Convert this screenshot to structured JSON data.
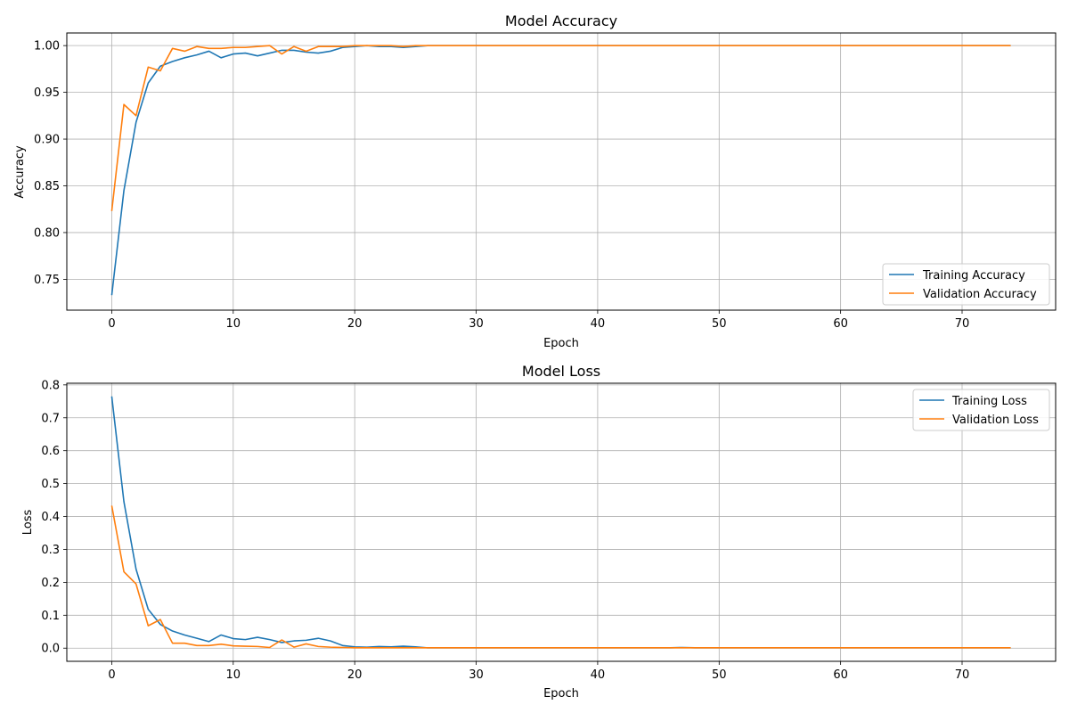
{
  "chart_data": [
    {
      "type": "line",
      "title": "Model Accuracy",
      "xlabel": "Epoch",
      "ylabel": "Accuracy",
      "xlim": [
        -3.7,
        77.7
      ],
      "ylim": [
        0.717,
        1.0135
      ],
      "xticks": [
        0,
        10,
        20,
        30,
        40,
        50,
        60,
        70
      ],
      "yticks": [
        0.75,
        0.8,
        0.85,
        0.9,
        0.95,
        1.0
      ],
      "ytick_decimals": 2,
      "grid": true,
      "legend_position": "lower-right",
      "series": [
        {
          "name": "Training Accuracy",
          "color": "#1f77b4",
          "values": [
            0.733,
            0.845,
            0.918,
            0.96,
            0.978,
            0.983,
            0.987,
            0.99,
            0.994,
            0.987,
            0.991,
            0.992,
            0.989,
            0.992,
            0.995,
            0.995,
            0.993,
            0.992,
            0.994,
            0.998,
            0.999,
            1.0,
            0.999,
            0.999,
            0.998,
            0.999,
            1.0,
            1.0,
            1.0,
            1.0,
            1.0,
            1.0,
            1.0,
            1.0,
            1.0,
            1.0,
            1.0,
            1.0,
            1.0,
            1.0,
            1.0,
            1.0,
            1.0,
            1.0,
            1.0,
            1.0,
            1.0,
            1.0,
            1.0,
            1.0,
            1.0,
            1.0,
            1.0,
            1.0,
            1.0,
            1.0,
            1.0,
            1.0,
            1.0,
            1.0,
            1.0,
            1.0,
            1.0,
            1.0,
            1.0,
            1.0,
            1.0,
            1.0,
            1.0,
            1.0,
            1.0,
            1.0,
            1.0,
            1.0,
            1.0
          ]
        },
        {
          "name": "Validation Accuracy",
          "color": "#ff7f0e",
          "values": [
            0.823,
            0.937,
            0.925,
            0.977,
            0.973,
            0.997,
            0.994,
            0.999,
            0.997,
            0.997,
            0.998,
            0.998,
            0.999,
            1.0,
            0.991,
            0.999,
            0.994,
            0.999,
            0.999,
            0.999,
            1.0,
            1.0,
            1.0,
            1.0,
            0.999,
            1.0,
            1.0,
            1.0,
            1.0,
            1.0,
            1.0,
            1.0,
            1.0,
            1.0,
            1.0,
            1.0,
            1.0,
            1.0,
            1.0,
            1.0,
            1.0,
            1.0,
            1.0,
            1.0,
            1.0,
            1.0,
            1.0,
            1.0,
            1.0,
            1.0,
            1.0,
            1.0,
            1.0,
            1.0,
            1.0,
            1.0,
            1.0,
            1.0,
            1.0,
            1.0,
            1.0,
            1.0,
            1.0,
            1.0,
            1.0,
            1.0,
            1.0,
            1.0,
            1.0,
            1.0,
            1.0,
            1.0,
            1.0,
            1.0,
            1.0
          ]
        }
      ]
    },
    {
      "type": "line",
      "title": "Model Loss",
      "xlabel": "Epoch",
      "ylabel": "Loss",
      "xlim": [
        -3.7,
        77.7
      ],
      "ylim": [
        -0.04,
        0.805
      ],
      "xticks": [
        0,
        10,
        20,
        30,
        40,
        50,
        60,
        70
      ],
      "yticks": [
        0.0,
        0.1,
        0.2,
        0.3,
        0.4,
        0.5,
        0.6,
        0.7,
        0.8
      ],
      "ytick_decimals": 1,
      "grid": true,
      "legend_position": "upper-right",
      "series": [
        {
          "name": "Training Loss",
          "color": "#1f77b4",
          "values": [
            0.765,
            0.445,
            0.24,
            0.118,
            0.072,
            0.052,
            0.04,
            0.03,
            0.02,
            0.04,
            0.029,
            0.026,
            0.033,
            0.026,
            0.017,
            0.022,
            0.024,
            0.03,
            0.022,
            0.008,
            0.004,
            0.003,
            0.005,
            0.004,
            0.006,
            0.004,
            0.001,
            0.001,
            0.001,
            0.001,
            0.001,
            0.001,
            0.001,
            0.001,
            0.001,
            0.001,
            0.001,
            0.001,
            0.001,
            0.001,
            0.001,
            0.001,
            0.001,
            0.001,
            0.001,
            0.001,
            0.001,
            0.002,
            0.001,
            0.001,
            0.001,
            0.001,
            0.001,
            0.001,
            0.001,
            0.001,
            0.001,
            0.001,
            0.001,
            0.001,
            0.001,
            0.001,
            0.001,
            0.001,
            0.001,
            0.001,
            0.001,
            0.001,
            0.001,
            0.001,
            0.001,
            0.001,
            0.001,
            0.001,
            0.001
          ]
        },
        {
          "name": "Validation Loss",
          "color": "#ff7f0e",
          "values": [
            0.433,
            0.232,
            0.195,
            0.068,
            0.087,
            0.015,
            0.015,
            0.008,
            0.008,
            0.012,
            0.007,
            0.006,
            0.005,
            0.002,
            0.025,
            0.003,
            0.013,
            0.005,
            0.003,
            0.002,
            0.001,
            0.001,
            0.001,
            0.001,
            0.001,
            0.001,
            0.001,
            0.001,
            0.001,
            0.001,
            0.001,
            0.001,
            0.001,
            0.001,
            0.001,
            0.001,
            0.001,
            0.001,
            0.001,
            0.001,
            0.001,
            0.001,
            0.001,
            0.001,
            0.001,
            0.001,
            0.001,
            0.001,
            0.001,
            0.001,
            0.001,
            0.001,
            0.001,
            0.001,
            0.001,
            0.001,
            0.001,
            0.001,
            0.001,
            0.001,
            0.001,
            0.001,
            0.001,
            0.001,
            0.001,
            0.001,
            0.001,
            0.001,
            0.001,
            0.001,
            0.001,
            0.001,
            0.001,
            0.001,
            0.001
          ]
        }
      ]
    }
  ]
}
